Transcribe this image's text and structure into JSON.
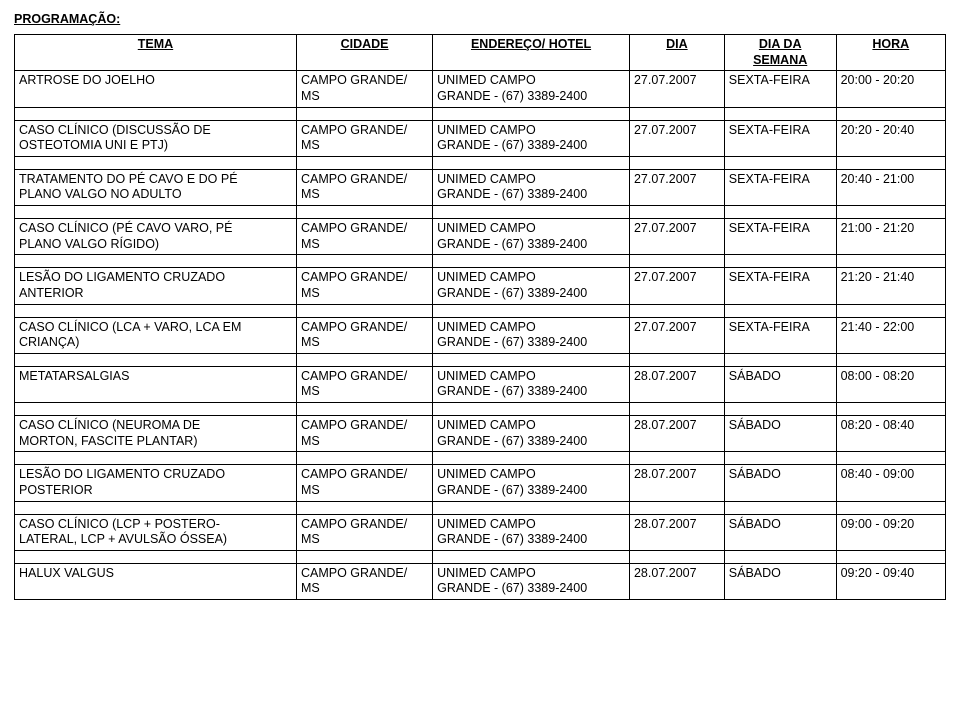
{
  "title": "PROGRAMAÇÃO:",
  "headers": {
    "tema": "TEMA",
    "cidade": "CIDADE",
    "endereco": "ENDEREÇO/ HOTEL",
    "dia": "DIA",
    "dia_semana_l1": "DIA DA",
    "dia_semana_l2": "SEMANA",
    "hora": "HORA"
  },
  "cidade_l1": "CAMPO GRANDE/",
  "cidade_l2": "MS",
  "endereco_l1": "UNIMED CAMPO",
  "endereco_l2": "GRANDE - (67) 3389-2400",
  "rows": [
    {
      "tema_l1": "ARTROSE DO JOELHO",
      "tema_l2": "",
      "dia": "27.07.2007",
      "dd": "SEXTA-FEIRA",
      "hora": "20:00 - 20:20"
    },
    {
      "tema_l1": "CASO CLÍNICO (DISCUSSÃO DE",
      "tema_l2": "OSTEOTOMIA UNI E PTJ)",
      "dia": "27.07.2007",
      "dd": "SEXTA-FEIRA",
      "hora": "20:20 - 20:40"
    },
    {
      "tema_l1": "TRATAMENTO DO PÉ CAVO E DO PÉ",
      "tema_l2": "PLANO VALGO NO ADULTO",
      "dia": "27.07.2007",
      "dd": "SEXTA-FEIRA",
      "hora": "20:40 - 21:00"
    },
    {
      "tema_l1": "CASO CLÍNICO (PÉ CAVO VARO, PÉ",
      "tema_l2": "PLANO VALGO RÍGIDO)",
      "dia": "27.07.2007",
      "dd": "SEXTA-FEIRA",
      "hora": "21:00 - 21:20"
    },
    {
      "tema_l1": "LESÃO DO LIGAMENTO CRUZADO",
      "tema_l2": "ANTERIOR",
      "dia": "27.07.2007",
      "dd": "SEXTA-FEIRA",
      "hora": "21:20 - 21:40"
    },
    {
      "tema_l1": "CASO CLÍNICO (LCA + VARO, LCA EM",
      "tema_l2": "CRIANÇA)",
      "dia": "27.07.2007",
      "dd": "SEXTA-FEIRA",
      "hora": "21:40 - 22:00"
    },
    {
      "tema_l1": "METATARSALGIAS",
      "tema_l2": "",
      "dia": "28.07.2007",
      "dd": "SÁBADO",
      "hora": "08:00 - 08:20"
    },
    {
      "tema_l1": "CASO CLÍNICO (NEUROMA DE",
      "tema_l2": "MORTON, FASCITE PLANTAR)",
      "dia": "28.07.2007",
      "dd": "SÁBADO",
      "hora": "08:20 - 08:40"
    },
    {
      "tema_l1": "LESÃO DO LIGAMENTO CRUZADO",
      "tema_l2": "POSTERIOR",
      "dia": "28.07.2007",
      "dd": "SÁBADO",
      "hora": "08:40 - 09:00"
    },
    {
      "tema_l1": "CASO CLÍNICO (LCP + POSTERO-",
      "tema_l2": "LATERAL, LCP + AVULSÃO ÓSSEA)",
      "dia": "28.07.2007",
      "dd": "SÁBADO",
      "hora": "09:00 - 09:20"
    },
    {
      "tema_l1": "HALUX VALGUS",
      "tema_l2": "",
      "dia": "28.07.2007",
      "dd": "SÁBADO",
      "hora": "09:20 - 09:40"
    }
  ]
}
